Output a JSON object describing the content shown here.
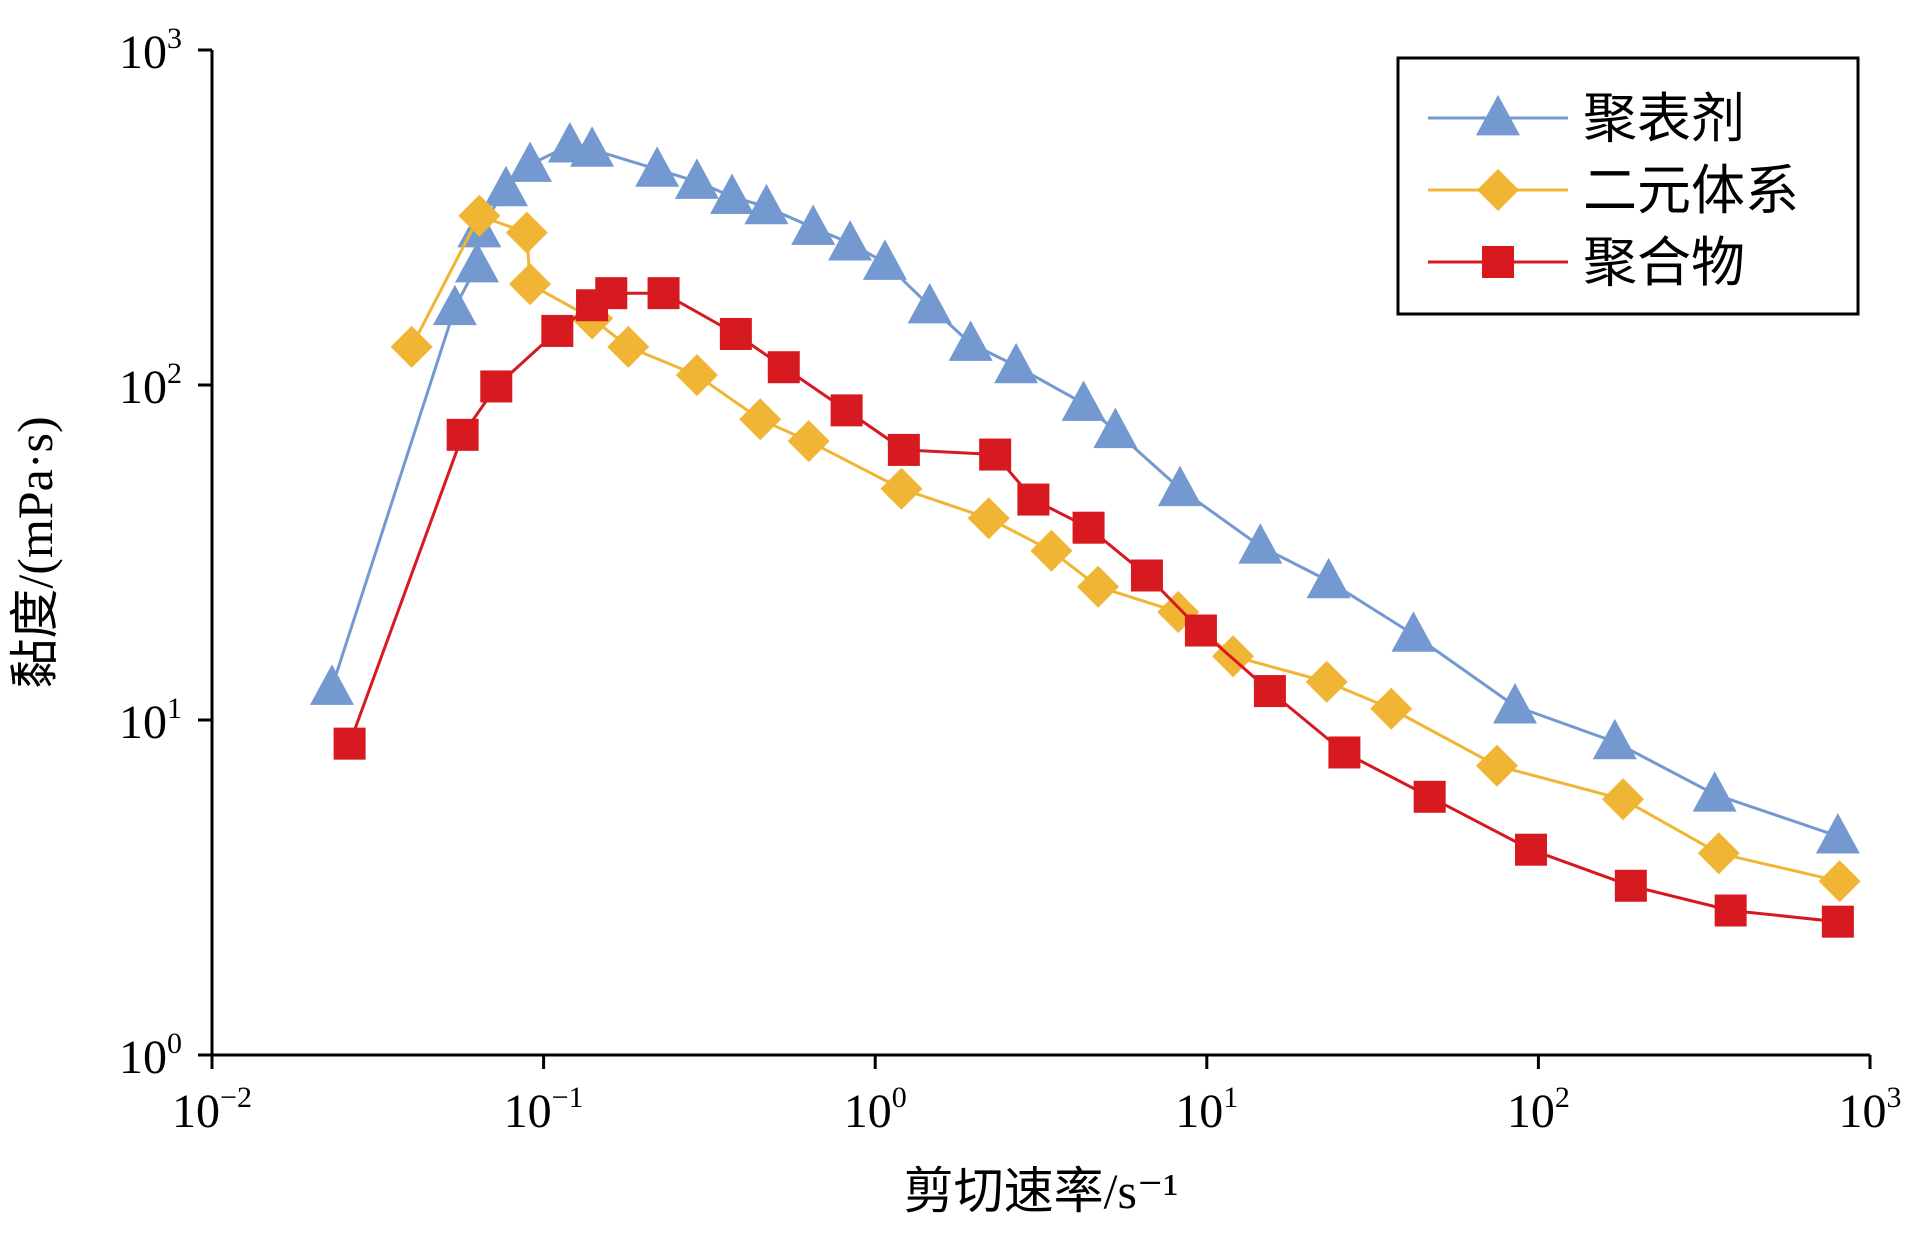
{
  "chart_data": {
    "type": "line",
    "x_scale": "log",
    "y_scale": "log",
    "xlim": [
      0.01,
      1000
    ],
    "ylim": [
      1,
      1000
    ],
    "xlabel": "剪切速率/s⁻¹",
    "ylabel": "黏度/(mPa·s)",
    "x_ticks": [
      {
        "base": "10",
        "exp": "−2"
      },
      {
        "base": "10",
        "exp": "−1"
      },
      {
        "base": "10",
        "exp": "0"
      },
      {
        "base": "10",
        "exp": "1"
      },
      {
        "base": "10",
        "exp": "2"
      },
      {
        "base": "10",
        "exp": "3"
      }
    ],
    "y_ticks": [
      {
        "base": "10",
        "exp": "0"
      },
      {
        "base": "10",
        "exp": "1"
      },
      {
        "base": "10",
        "exp": "2"
      },
      {
        "base": "10",
        "exp": "3"
      }
    ],
    "legend_position": "top-right",
    "series": [
      {
        "name": "聚表剂",
        "color": "#7399d0",
        "marker": "triangle",
        "x": [
          0.023,
          0.054,
          0.063,
          0.064,
          0.077,
          0.091,
          0.12,
          0.14,
          0.22,
          0.29,
          0.37,
          0.47,
          0.65,
          0.84,
          1.07,
          1.46,
          1.94,
          2.66,
          4.25,
          5.3,
          8.3,
          14.5,
          23.3,
          42,
          85,
          170,
          340,
          800
        ],
        "y": [
          12.5,
          170,
          228,
          290,
          385,
          455,
          520,
          505,
          440,
          405,
          365,
          340,
          295,
          265,
          232,
          172,
          133,
          114,
          88,
          73,
          49,
          33,
          26,
          18,
          11,
          8.6,
          6.0,
          4.5
        ]
      },
      {
        "name": "二元体系",
        "color": "#f0b534",
        "marker": "diamond",
        "x": [
          0.04,
          0.064,
          0.089,
          0.091,
          0.14,
          0.18,
          0.29,
          0.45,
          0.63,
          1.2,
          2.2,
          3.4,
          4.7,
          8.2,
          12,
          23,
          36,
          75,
          180,
          350,
          810
        ],
        "y": [
          130,
          320,
          285,
          200,
          158,
          130,
          107,
          79,
          68,
          49,
          40,
          32,
          25,
          21,
          15.5,
          13,
          10.8,
          7.3,
          5.8,
          4.0,
          3.3
        ]
      },
      {
        "name": "聚合物",
        "color": "#d71920",
        "marker": "square",
        "x": [
          0.026,
          0.057,
          0.072,
          0.11,
          0.14,
          0.16,
          0.23,
          0.38,
          0.53,
          0.82,
          1.22,
          2.3,
          3.0,
          4.4,
          6.6,
          9.6,
          15.5,
          26,
          47,
          95,
          190,
          380,
          800
        ],
        "y": [
          8.5,
          71,
          99,
          145,
          173,
          188,
          188,
          142,
          113,
          84,
          64,
          62,
          45.5,
          37.5,
          27,
          18.5,
          12.2,
          8.0,
          5.9,
          4.1,
          3.2,
          2.7,
          2.5
        ]
      }
    ]
  }
}
